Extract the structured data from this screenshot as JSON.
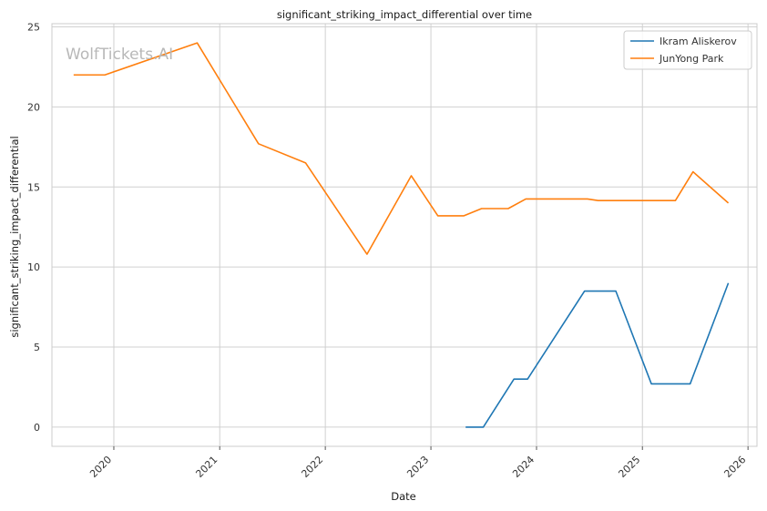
{
  "chart_data": {
    "type": "line",
    "title": "significant_striking_impact_differential over time",
    "xlabel": "Date",
    "ylabel": "significant_striking_impact_differential",
    "watermark": "WolfTickets.AI",
    "xlim": [
      "2019-06-01",
      "2026-02-01"
    ],
    "ylim": [
      -1.2,
      25.2
    ],
    "x_ticks": [
      "2020-01-01",
      "2021-01-01",
      "2022-01-01",
      "2023-01-01",
      "2024-01-01",
      "2025-01-01",
      "2026-01-01"
    ],
    "x_tick_labels": [
      "2020",
      "2021",
      "2022",
      "2023",
      "2024",
      "2025",
      "2026"
    ],
    "y_ticks": [
      0,
      5,
      10,
      15,
      20,
      25
    ],
    "y_tick_labels": [
      "0",
      "5",
      "10",
      "15",
      "20",
      "25"
    ],
    "grid": true,
    "legend_position": "top-right",
    "series": [
      {
        "name": "Ikram Aliskerov",
        "color": "#1f77b4",
        "points": [
          [
            "2023-05-01",
            0.0
          ],
          [
            "2023-07-01",
            0.0
          ],
          [
            "2023-10-15",
            3.0
          ],
          [
            "2023-12-01",
            3.0
          ],
          [
            "2024-06-15",
            8.5
          ],
          [
            "2024-10-01",
            8.5
          ],
          [
            "2025-02-01",
            2.7
          ],
          [
            "2025-06-15",
            2.7
          ],
          [
            "2025-10-25",
            9.0
          ]
        ]
      },
      {
        "name": "JunYong Park",
        "color": "#ff7f0e",
        "points": [
          [
            "2019-08-15",
            22.0
          ],
          [
            "2019-12-01",
            22.0
          ],
          [
            "2020-10-15",
            24.0
          ],
          [
            "2021-05-15",
            17.7
          ],
          [
            "2021-10-25",
            16.5
          ],
          [
            "2022-05-25",
            10.8
          ],
          [
            "2022-10-25",
            15.7
          ],
          [
            "2023-01-25",
            13.2
          ],
          [
            "2023-04-25",
            13.2
          ],
          [
            "2023-06-25",
            13.65
          ],
          [
            "2023-09-25",
            13.65
          ],
          [
            "2023-11-25",
            14.25
          ],
          [
            "2024-06-25",
            14.25
          ],
          [
            "2024-08-01",
            14.15
          ],
          [
            "2025-04-25",
            14.15
          ],
          [
            "2025-06-25",
            15.95
          ],
          [
            "2025-10-25",
            14.0
          ]
        ]
      }
    ]
  }
}
